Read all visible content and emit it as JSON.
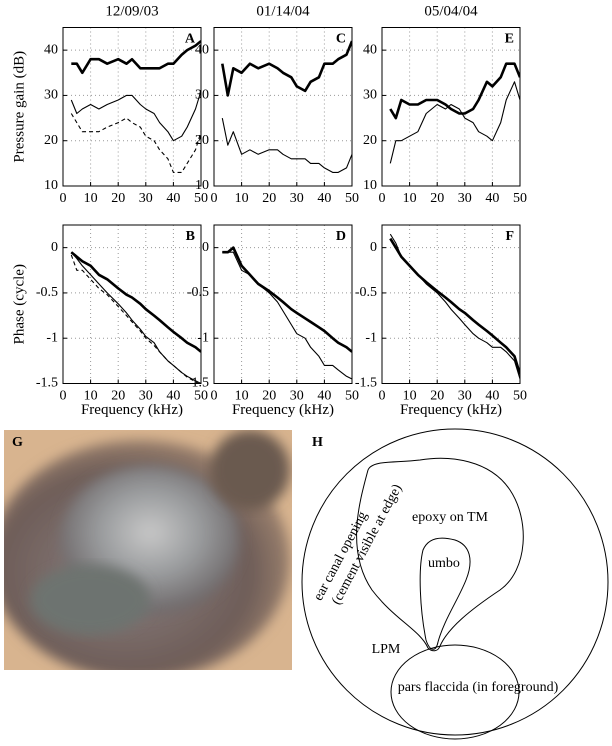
{
  "chart_data": [
    {
      "type": "line",
      "title": "12/09/03",
      "panel": "A",
      "ylabel": "Pressure gain (dB)",
      "grid": true,
      "xlim": [
        0,
        50
      ],
      "xticks": [
        0,
        10,
        20,
        30,
        40,
        50
      ],
      "ylim": [
        10,
        45
      ],
      "yticks": [
        10,
        20,
        30,
        40
      ],
      "x": [
        3,
        5,
        7,
        10,
        13,
        16,
        20,
        23,
        25,
        28,
        30,
        33,
        35,
        38,
        40,
        43,
        45,
        48,
        50
      ],
      "series": [
        {
          "color": "#000000",
          "line_width": 2.6,
          "dashed": false,
          "values": [
            37,
            37,
            35,
            38,
            38,
            37,
            38,
            37,
            38,
            36,
            36,
            36,
            36,
            37,
            37,
            39,
            40,
            41,
            42
          ]
        },
        {
          "color": "#000000",
          "line_width": 1.1,
          "dashed": false,
          "values": [
            29,
            26,
            27,
            28,
            27,
            28,
            29,
            30,
            30,
            28,
            27,
            26,
            24,
            22,
            20,
            21,
            23,
            27,
            31
          ]
        },
        {
          "color": "#000000",
          "line_width": 1.1,
          "dashed": true,
          "values": [
            26,
            24,
            22,
            22,
            22,
            23,
            24,
            25,
            24,
            23,
            21,
            20,
            18,
            16,
            13,
            13,
            15,
            18,
            22
          ]
        }
      ]
    },
    {
      "type": "line",
      "title": "01/14/04",
      "panel": "C",
      "grid": true,
      "xlim": [
        0,
        50
      ],
      "xticks": [
        0,
        10,
        20,
        30,
        40,
        50
      ],
      "ylim": [
        10,
        45
      ],
      "yticks": [
        10,
        20,
        30,
        40
      ],
      "x": [
        3,
        5,
        7,
        10,
        13,
        16,
        20,
        23,
        25,
        28,
        30,
        33,
        35,
        38,
        40,
        43,
        45,
        48,
        50
      ],
      "series": [
        {
          "color": "#000000",
          "line_width": 2.6,
          "dashed": false,
          "values": [
            37,
            30,
            36,
            35,
            37,
            36,
            37,
            36,
            35,
            34,
            32,
            31,
            33,
            34,
            37,
            37,
            38,
            39,
            42
          ]
        },
        {
          "color": "#000000",
          "line_width": 1.1,
          "dashed": false,
          "values": [
            25,
            19,
            22,
            17,
            18,
            17,
            18,
            18,
            17,
            16,
            16,
            16,
            15,
            15,
            14,
            13,
            13,
            14,
            17
          ]
        }
      ]
    },
    {
      "type": "line",
      "title": "05/04/04",
      "panel": "E",
      "grid": true,
      "xlim": [
        0,
        50
      ],
      "xticks": [
        0,
        10,
        20,
        30,
        40,
        50
      ],
      "ylim": [
        10,
        45
      ],
      "yticks": [
        10,
        20,
        30,
        40
      ],
      "x": [
        3,
        5,
        7,
        10,
        13,
        16,
        20,
        23,
        25,
        28,
        30,
        33,
        35,
        38,
        40,
        43,
        45,
        48,
        50
      ],
      "series": [
        {
          "color": "#000000",
          "line_width": 2.6,
          "dashed": false,
          "values": [
            27,
            25,
            29,
            28,
            28,
            29,
            29,
            28,
            27,
            26,
            26,
            27,
            29,
            33,
            32,
            34,
            37,
            37,
            34
          ]
        },
        {
          "color": "#000000",
          "line_width": 1.1,
          "dashed": false,
          "values": [
            15,
            20,
            20,
            21,
            22,
            26,
            28,
            27,
            28,
            27,
            25,
            24,
            22,
            21,
            20,
            24,
            29,
            33,
            29
          ]
        }
      ]
    },
    {
      "type": "line",
      "panel": "B",
      "ylabel": "Phase (cycle)",
      "xlabel": "Frequency (kHz)",
      "grid": true,
      "xlim": [
        0,
        50
      ],
      "xticks": [
        0,
        10,
        20,
        30,
        40,
        50
      ],
      "ylim": [
        -1.5,
        0.25
      ],
      "yticks": [
        -1.5,
        -1,
        -0.5,
        0
      ],
      "x": [
        3,
        5,
        7,
        10,
        13,
        16,
        20,
        23,
        25,
        28,
        30,
        33,
        35,
        38,
        40,
        43,
        45,
        48,
        50
      ],
      "series": [
        {
          "color": "#000000",
          "line_width": 2.6,
          "dashed": false,
          "values": [
            -0.05,
            -0.1,
            -0.15,
            -0.2,
            -0.3,
            -0.35,
            -0.45,
            -0.52,
            -0.55,
            -0.62,
            -0.68,
            -0.75,
            -0.8,
            -0.88,
            -0.93,
            -1.0,
            -1.05,
            -1.1,
            -1.15
          ]
        },
        {
          "color": "#000000",
          "line_width": 1.1,
          "dashed": false,
          "values": [
            -0.05,
            -0.12,
            -0.2,
            -0.3,
            -0.4,
            -0.5,
            -0.62,
            -0.72,
            -0.8,
            -0.9,
            -0.98,
            -1.05,
            -1.15,
            -1.25,
            -1.3,
            -1.38,
            -1.42,
            -1.47,
            -1.5
          ]
        },
        {
          "color": "#000000",
          "line_width": 1.1,
          "dashed": true,
          "values": [
            -0.08,
            -0.25,
            -0.25,
            -0.35,
            -0.45,
            -0.52,
            -0.65,
            -0.75,
            -0.82,
            -0.92,
            -1.0,
            -1.08,
            -1.15,
            -1.25,
            -1.3,
            -1.38,
            -1.43,
            -1.48,
            -1.52
          ]
        }
      ]
    },
    {
      "type": "line",
      "panel": "D",
      "xlabel": "Frequency (kHz)",
      "grid": true,
      "xlim": [
        0,
        50
      ],
      "xticks": [
        0,
        10,
        20,
        30,
        40,
        50
      ],
      "ylim": [
        -1.5,
        0.25
      ],
      "yticks": [
        -1.5,
        -1,
        -0.5,
        0
      ],
      "x": [
        3,
        5,
        7,
        10,
        13,
        16,
        20,
        23,
        25,
        28,
        30,
        33,
        35,
        38,
        40,
        43,
        45,
        48,
        50
      ],
      "series": [
        {
          "color": "#000000",
          "line_width": 2.6,
          "dashed": false,
          "values": [
            -0.05,
            -0.05,
            0.0,
            -0.2,
            -0.3,
            -0.4,
            -0.48,
            -0.55,
            -0.6,
            -0.68,
            -0.72,
            -0.78,
            -0.82,
            -0.88,
            -0.92,
            -1.0,
            -1.05,
            -1.1,
            -1.15
          ]
        },
        {
          "color": "#000000",
          "line_width": 1.1,
          "dashed": false,
          "values": [
            -0.05,
            -0.05,
            -0.05,
            -0.25,
            -0.3,
            -0.4,
            -0.5,
            -0.6,
            -0.7,
            -0.85,
            -0.95,
            -1.0,
            -1.1,
            -1.2,
            -1.3,
            -1.3,
            -1.35,
            -1.42,
            -1.45
          ]
        }
      ]
    },
    {
      "type": "line",
      "panel": "F",
      "xlabel": "Frequency (kHz)",
      "grid": true,
      "xlim": [
        0,
        50
      ],
      "xticks": [
        0,
        10,
        20,
        30,
        40,
        50
      ],
      "ylim": [
        -1.5,
        0.25
      ],
      "yticks": [
        -1.5,
        -1,
        -0.5,
        0
      ],
      "x": [
        3,
        5,
        7,
        10,
        13,
        16,
        20,
        23,
        25,
        28,
        30,
        33,
        35,
        38,
        40,
        43,
        45,
        48,
        50
      ],
      "series": [
        {
          "color": "#000000",
          "line_width": 2.6,
          "dashed": false,
          "values": [
            0.1,
            0.0,
            -0.1,
            -0.2,
            -0.3,
            -0.38,
            -0.48,
            -0.55,
            -0.6,
            -0.68,
            -0.72,
            -0.8,
            -0.85,
            -0.92,
            -0.97,
            -1.05,
            -1.1,
            -1.2,
            -1.4
          ]
        },
        {
          "color": "#000000",
          "line_width": 1.1,
          "dashed": false,
          "values": [
            0.15,
            0.05,
            -0.1,
            -0.2,
            -0.3,
            -0.4,
            -0.5,
            -0.6,
            -0.68,
            -0.78,
            -0.85,
            -0.95,
            -1.0,
            -1.05,
            -1.1,
            -1.1,
            -1.15,
            -1.25,
            -1.45
          ]
        }
      ]
    }
  ],
  "photo": {
    "label": "G"
  },
  "diagram": {
    "label": "H",
    "canal": [
      "ear canal opening",
      "(cement visible at edge)"
    ],
    "epoxy": "epoxy on TM",
    "umbo": "umbo",
    "lpm": "LPM",
    "flaccida": "pars flaccida (in foreground)"
  }
}
